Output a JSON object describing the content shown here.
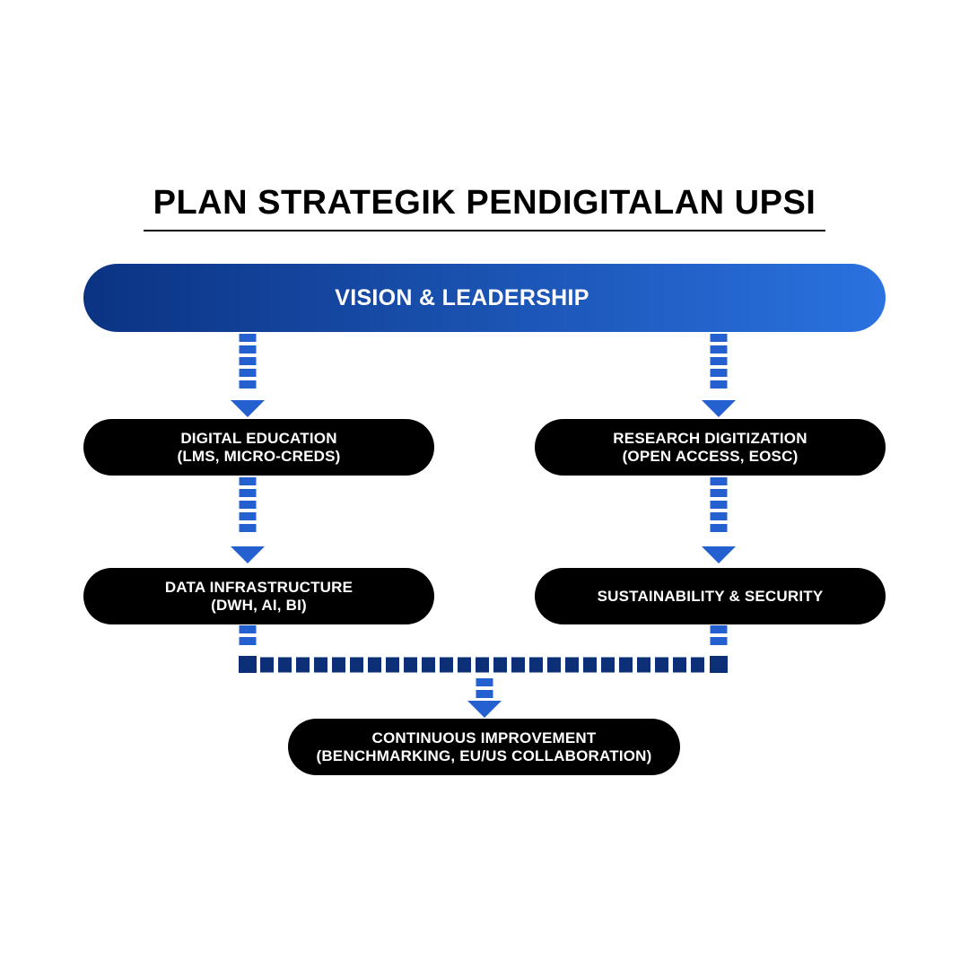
{
  "title": "PLAN STRATEGIK PENDIGITALAN UPSI",
  "top_banner": {
    "label": "VISION & LEADERSHIP",
    "gradient": [
      "#0b3383",
      "#2a72e0"
    ]
  },
  "nodes": {
    "digital_education": {
      "line1": "DIGITAL EDUCATION",
      "line2": "(LMS, MICRO-CREDS)"
    },
    "research_digitization": {
      "line1": "RESEARCH DIGITIZATION",
      "line2": "(OPEN ACCESS, EOSC)"
    },
    "data_infrastructure": {
      "line1": "DATA INFRASTRUCTURE",
      "line2": "(DWH, AI, BI)"
    },
    "sustainability_security": {
      "line1": "SUSTAINABILITY & SECURITY",
      "line2": ""
    },
    "continuous_improvement": {
      "line1": "CONTINUOUS IMPROVEMENT",
      "line2": "(BENCHMARKING, EU/US COLLABORATION)"
    }
  },
  "colors": {
    "node_fill": "#000000",
    "node_text": "#ffffff",
    "connector_blue": "#2460cf",
    "connector_navy": "#0d2f78",
    "title_text": "#000000"
  }
}
